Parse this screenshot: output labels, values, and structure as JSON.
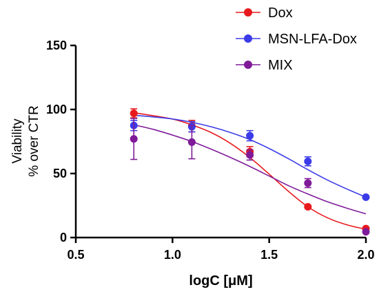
{
  "chart_data": {
    "type": "scatter",
    "xlabel": "logC [μM]",
    "ylabel": [
      "Viability",
      "% over CTR"
    ],
    "xlim": [
      0.5,
      2.0
    ],
    "ylim": [
      0,
      150
    ],
    "x_ticks": [
      "0.5",
      "1.0",
      "1.5",
      "2.0"
    ],
    "x_tick_values": [
      0.5,
      1.0,
      1.5,
      2.0
    ],
    "y_ticks": [
      "0",
      "50",
      "100",
      "150"
    ],
    "y_tick_values": [
      0,
      50,
      100,
      150
    ],
    "grid": false,
    "legend_position": "top-right",
    "series": [
      {
        "name": "Dox",
        "color": "#e8191c",
        "points": [
          {
            "x": 0.8,
            "y": 97,
            "err": 3.5
          },
          {
            "x": 1.1,
            "y": 87,
            "err": 4.5
          },
          {
            "x": 1.4,
            "y": 67,
            "err": 4
          },
          {
            "x": 1.7,
            "y": 24,
            "err": 0
          },
          {
            "x": 2.0,
            "y": 7,
            "err": 0
          }
        ],
        "fit": [
          [
            0.8,
            97.5
          ],
          [
            1.0,
            92.5
          ],
          [
            1.1,
            88
          ],
          [
            1.2,
            82
          ],
          [
            1.3,
            73.5
          ],
          [
            1.4,
            62.5
          ],
          [
            1.5,
            49.5
          ],
          [
            1.6,
            36
          ],
          [
            1.7,
            24
          ],
          [
            1.8,
            15.5
          ],
          [
            1.9,
            10
          ],
          [
            2.0,
            6.5
          ]
        ]
      },
      {
        "name": "MSN-LFA-Dox",
        "color": "#3b3be8",
        "points": [
          {
            "x": 0.8,
            "y": 87.5,
            "err": 4
          },
          {
            "x": 1.1,
            "y": 86.5,
            "err": 4
          },
          {
            "x": 1.4,
            "y": 79.5,
            "err": 4
          },
          {
            "x": 1.7,
            "y": 59.5,
            "err": 3.5
          },
          {
            "x": 2.0,
            "y": 31.5,
            "err": 0
          }
        ],
        "fit": [
          [
            0.8,
            95.5
          ],
          [
            0.9,
            94.2
          ],
          [
            1.0,
            92.6
          ],
          [
            1.1,
            90
          ],
          [
            1.2,
            86.5
          ],
          [
            1.3,
            82
          ],
          [
            1.4,
            76.5
          ],
          [
            1.5,
            69.5
          ],
          [
            1.6,
            61.5
          ],
          [
            1.7,
            53
          ],
          [
            1.8,
            45
          ],
          [
            1.9,
            38
          ],
          [
            2.0,
            31.5
          ]
        ]
      },
      {
        "name": "MIX",
        "color": "#7f1a99",
        "points": [
          {
            "x": 0.8,
            "y": 77,
            "err": 16
          },
          {
            "x": 1.1,
            "y": 74.5,
            "err": 13
          },
          {
            "x": 1.4,
            "y": 64.5,
            "err": 4
          },
          {
            "x": 1.7,
            "y": 42.5,
            "err": 3.5
          },
          {
            "x": 2.0,
            "y": 4.5,
            "err": 0
          }
        ],
        "fit": [
          [
            0.8,
            88
          ],
          [
            0.9,
            84.5
          ],
          [
            1.0,
            80
          ],
          [
            1.1,
            75
          ],
          [
            1.2,
            69
          ],
          [
            1.3,
            62.5
          ],
          [
            1.4,
            55.5
          ],
          [
            1.5,
            48
          ],
          [
            1.6,
            40.5
          ],
          [
            1.7,
            34
          ],
          [
            1.8,
            28
          ],
          [
            1.9,
            23
          ],
          [
            2.0,
            18.5
          ]
        ]
      }
    ]
  }
}
